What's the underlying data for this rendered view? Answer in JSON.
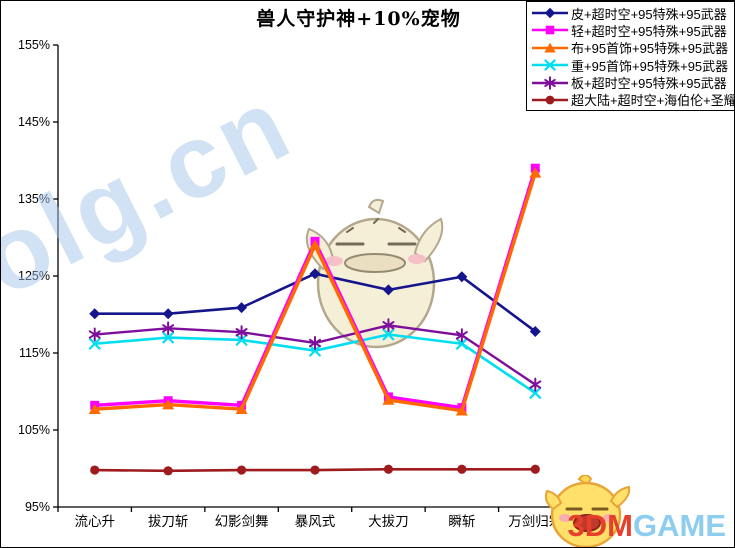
{
  "title": "兽人守护神+10%宠物",
  "watermark": {
    "site_text": "Colg.cn"
  },
  "brand": {
    "logo_3dm": "3DM",
    "logo_game": "GAME"
  },
  "chart_data": {
    "type": "line",
    "title": "兽人守护神+10%宠物",
    "categories": [
      "流心升",
      "拔刀斩",
      "幻影剑舞",
      "暴风式",
      "大拔刀",
      "瞬斩",
      "万剑归宗"
    ],
    "xlabel": "",
    "ylabel": "",
    "ylim": [
      95,
      155
    ],
    "y_tick_labels": [
      "155%",
      "145%",
      "135%",
      "125%",
      "115%",
      "105%",
      "95%"
    ],
    "grid": false,
    "legend_position": "top-right",
    "series": [
      {
        "name": "皮+超时空+95特殊+95武器",
        "color": "#15158C",
        "marker": "diamond",
        "values": [
          120.1,
          120.1,
          120.9,
          125.3,
          123.2,
          124.9,
          117.8
        ]
      },
      {
        "name": "轻+超时空+95特殊+95武器",
        "color": "#FF00FF",
        "marker": "square",
        "values": [
          108.2,
          108.8,
          108.2,
          129.5,
          109.3,
          107.9,
          139.0
        ]
      },
      {
        "name": "布+95首饰+95特殊+95武器",
        "color": "#FF6A00",
        "marker": "triangle",
        "values": [
          107.7,
          108.3,
          107.7,
          129.0,
          108.9,
          107.5,
          138.4
        ]
      },
      {
        "name": "重+95首饰+95特殊+95武器",
        "color": "#00DEEF",
        "marker": "x",
        "values": [
          116.2,
          117.0,
          116.7,
          115.3,
          117.4,
          116.2,
          109.8
        ]
      },
      {
        "name": "板+超时空+95特殊+95武器",
        "color": "#7D0F9B",
        "marker": "asterisk",
        "values": [
          117.4,
          118.2,
          117.7,
          116.3,
          118.6,
          117.3,
          110.9
        ]
      },
      {
        "name": "超大陆+超时空+海伯伦+圣耀",
        "color": "#9E1B1E",
        "marker": "circle",
        "values": [
          99.8,
          99.7,
          99.8,
          99.8,
          99.9,
          99.9,
          99.9
        ]
      }
    ]
  }
}
